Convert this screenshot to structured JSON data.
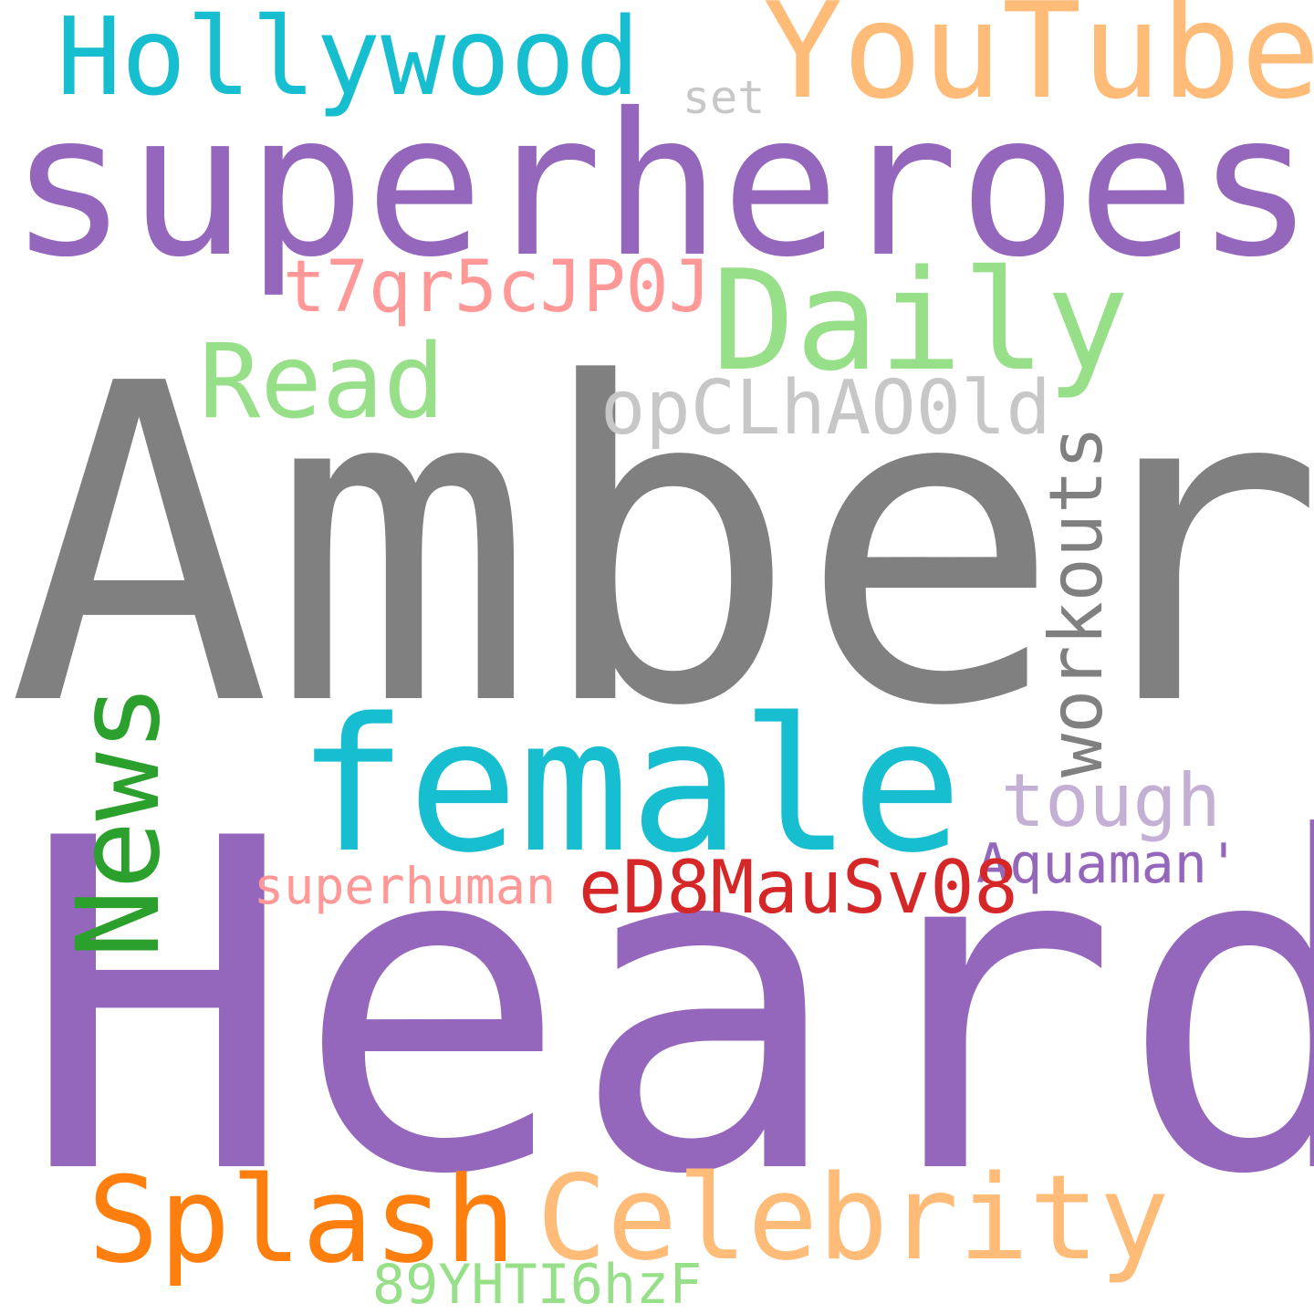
{
  "colors": {
    "background": "#ffffff",
    "gray": "#808080",
    "purple": "#9467bd",
    "cyan": "#17becf",
    "light_orange": "#ffbb78",
    "light_gray": "#c7c7c7",
    "pink": "#ff9896",
    "light_green": "#98df8a",
    "green": "#2ca02c",
    "light_purple": "#c5b0d5",
    "red": "#d62728",
    "orange": "#ff7f0e"
  },
  "words": {
    "amber": {
      "text": "Amber",
      "color": "#808080"
    },
    "heard": {
      "text": "Heard",
      "color": "#9467bd"
    },
    "superheroes": {
      "text": "superheroes",
      "color": "#9467bd"
    },
    "hollywood": {
      "text": "Hollywood",
      "color": "#17becf"
    },
    "youtube": {
      "text": "YouTube",
      "color": "#ffbb78"
    },
    "set": {
      "text": "set",
      "color": "#c7c7c7"
    },
    "t7qr5cjp0j": {
      "text": "t7qr5cJP0J",
      "color": "#ff9896"
    },
    "daily": {
      "text": "Daily",
      "color": "#98df8a"
    },
    "read": {
      "text": "Read",
      "color": "#98df8a"
    },
    "opclhao0ld": {
      "text": "opCLhAO0ld",
      "color": "#c7c7c7"
    },
    "workouts": {
      "text": "workouts",
      "color": "#808080"
    },
    "news": {
      "text": "News",
      "color": "#2ca02c"
    },
    "female": {
      "text": "female",
      "color": "#17becf"
    },
    "tough": {
      "text": "tough",
      "color": "#c5b0d5"
    },
    "aquaman": {
      "text": "Aquaman'",
      "color": "#9467bd"
    },
    "superhuman": {
      "text": "superhuman",
      "color": "#ff9896"
    },
    "ed8mausv08": {
      "text": "eD8MauSv08",
      "color": "#d62728"
    },
    "splash": {
      "text": "Splash",
      "color": "#ff7f0e"
    },
    "celebrity": {
      "text": "Celebrity",
      "color": "#ffbb78"
    },
    "89yhti6hzf": {
      "text": "89YHTI6hzF",
      "color": "#98df8a"
    }
  }
}
